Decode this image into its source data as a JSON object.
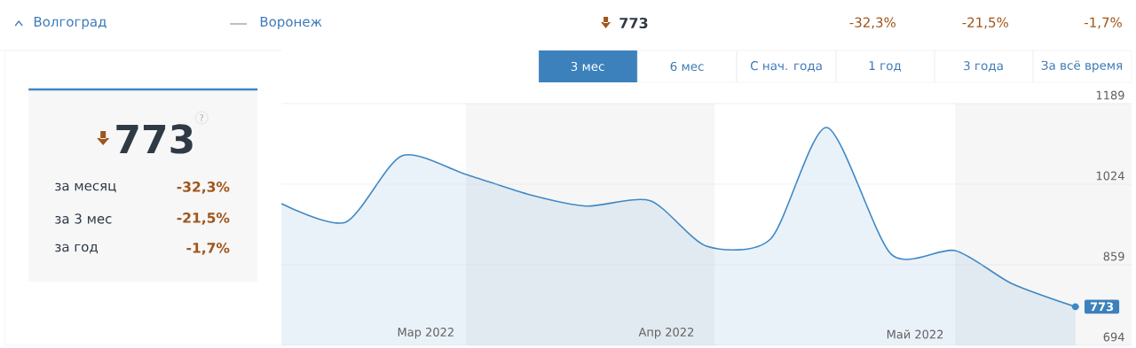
{
  "chart_data": {
    "type": "area",
    "color": "#3f88c5",
    "x": [
      "2022-02-06",
      "2022-02-14",
      "2022-02-21",
      "2022-03-01",
      "2022-03-09",
      "2022-03-16",
      "2022-03-24",
      "2022-03-31",
      "2022-04-08",
      "2022-04-15",
      "2022-04-23",
      "2022-05-01",
      "2022-05-08",
      "2022-05-16"
    ],
    "values": [
      984,
      946,
      1082,
      1044,
      1002,
      979,
      990,
      897,
      912,
      1140,
      881,
      888,
      821,
      773
    ],
    "xlim": [
      "2022-02-06",
      "2022-05-23"
    ],
    "xticks": [
      {
        "value": "2022-02-24",
        "label": "Мар 2022"
      },
      {
        "value": "2022-03-26",
        "label": "Апр 2022"
      },
      {
        "value": "2022-04-26",
        "label": "Май 2022"
      }
    ],
    "ylim": [
      694,
      1189
    ],
    "yticks": [
      694,
      859,
      1024,
      1189
    ],
    "grid": "y",
    "bands": [
      {
        "axis": "x",
        "from": "2022-03-01",
        "to": "2022-04-01",
        "color": "#f6f6f6"
      },
      {
        "axis": "x",
        "from": "2022-05-01",
        "to": "2022-05-23",
        "color": "#f6f6f6"
      }
    ],
    "annotations": [
      "Волгоград",
      "Воронеж",
      "773",
      "-32,3%",
      "-21,5%",
      "-1,7%",
      "3 мес",
      "6 мес",
      "С нач. года",
      "1 год",
      "3 года",
      "За всё время",
      "773",
      "за месяц",
      "-32,3%",
      "за 3 мес",
      "-21,5%",
      "за год",
      "-1,7%",
      "?",
      {
        "text": "773",
        "x": "2022-05-16",
        "y": 773
      }
    ]
  }
}
